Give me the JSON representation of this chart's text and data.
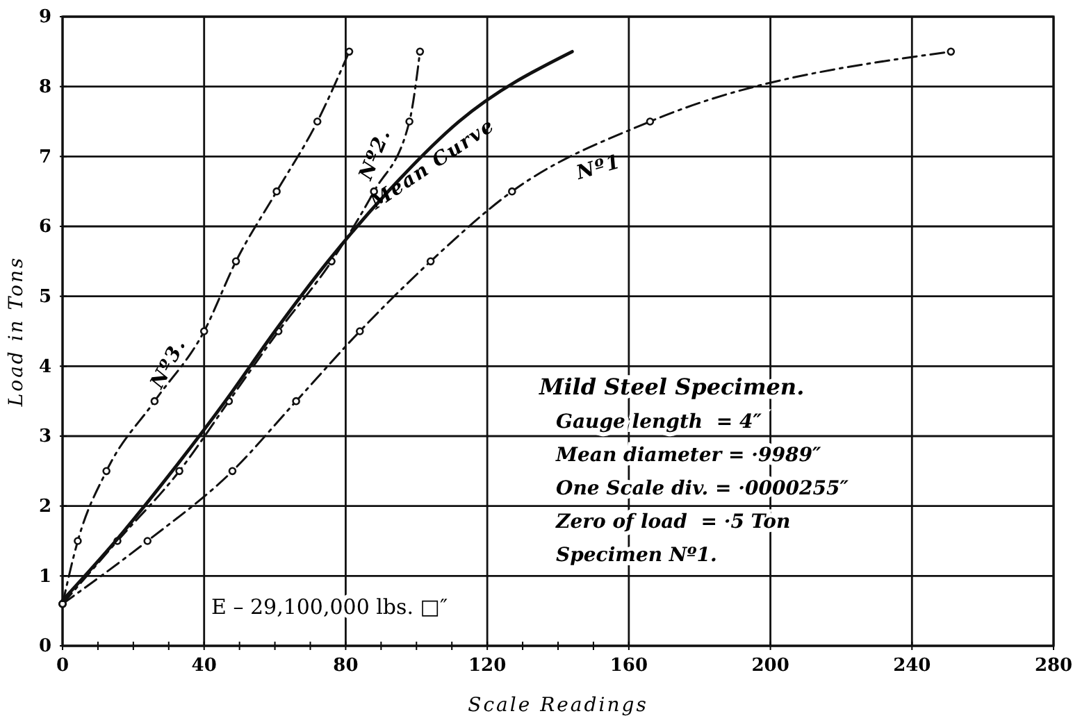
{
  "chart_data": {
    "type": "line",
    "xlabel": "Scale Readings",
    "ylabel": "Load in Tons",
    "xlim": [
      0,
      280
    ],
    "ylim": [
      0,
      9
    ],
    "xticks": [
      0,
      {
        "value": 10,
        "label": null
      },
      {
        "value": 20,
        "label": null
      },
      {
        "value": 30,
        "label": null
      },
      40,
      {
        "value": 50,
        "label": null
      },
      {
        "value": 60,
        "label": null
      },
      {
        "value": 70,
        "label": null
      },
      80,
      {
        "value": 90,
        "label": null
      },
      {
        "value": 100,
        "label": null
      },
      {
        "value": 110,
        "label": null
      },
      120,
      {
        "value": 130,
        "label": null
      },
      {
        "value": 140,
        "label": null
      },
      {
        "value": 150,
        "label": null
      },
      160,
      200,
      240,
      280
    ],
    "yticks": [
      0,
      1,
      2,
      3,
      4,
      5,
      6,
      7,
      8,
      9
    ],
    "grid": true,
    "series": [
      {
        "name": "Nº1",
        "color": "#111111",
        "line_style": "dashed",
        "marker": "circle",
        "x": [
          0,
          24,
          48,
          66,
          84,
          104,
          127,
          166,
          251
        ],
        "values": [
          0.6,
          1.5,
          2.5,
          3.5,
          4.5,
          5.5,
          6.5,
          7.5,
          8.5
        ]
      },
      {
        "name": "Nº2.",
        "color": "#111111",
        "line_style": "dashed",
        "marker": "circle",
        "x": [
          0,
          15.5,
          33,
          47,
          61,
          76,
          88,
          98,
          101
        ],
        "values": [
          0.6,
          1.5,
          2.5,
          3.5,
          4.5,
          5.5,
          6.5,
          7.5,
          8.5
        ]
      },
      {
        "name": "Nº3.",
        "color": "#111111",
        "line_style": "dashed",
        "marker": "circle",
        "x": [
          0,
          4.3,
          12.4,
          26,
          40,
          49,
          60.5,
          72,
          81
        ],
        "values": [
          0.6,
          1.5,
          2.5,
          3.5,
          4.5,
          5.5,
          6.5,
          7.5,
          8.5
        ]
      },
      {
        "name": "Mean Curve",
        "color": "#111111",
        "line_style": "solid",
        "marker": "none",
        "x": [
          0,
          15,
          31,
          46,
          60,
          75,
          92,
          112,
          144
        ],
        "values": [
          0.65,
          1.5,
          2.5,
          3.5,
          4.5,
          5.5,
          6.5,
          7.5,
          8.5
        ]
      }
    ],
    "annotations": [
      "Mild Steel Specimen.",
      "Gauge length  = 4″",
      "Mean diameter = ·9989″",
      "One Scale div. = ·0000255″",
      "Zero of load  = ·5 Ton",
      "Specimen Nº1.",
      "E – 29,100,000 lbs. □″"
    ]
  }
}
